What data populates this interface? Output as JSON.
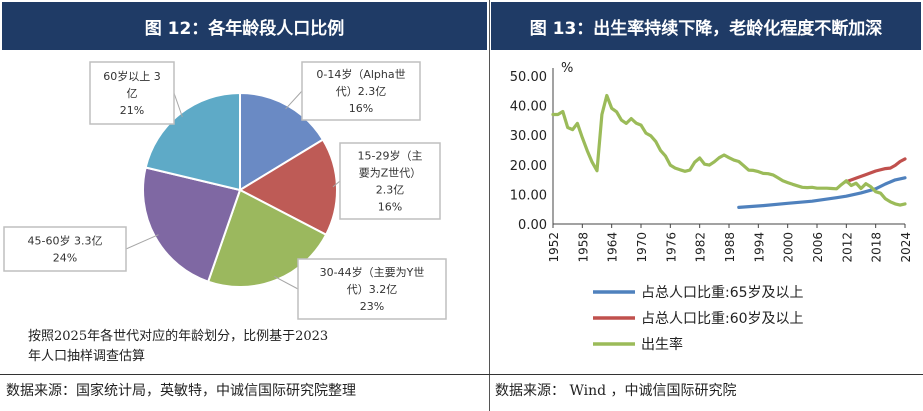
{
  "left": {
    "title": "图 12：各年龄段人口比例",
    "note_lines": [
      "按照2025年各世代对应的年龄划分，比例基于2023",
      "年人口抽样调查估算"
    ],
    "source": "数据来源：国家统计局，英敏特，中诚信国际研究院整理"
  },
  "right": {
    "title": "图 13：出生率持续下降，老龄化程度不断加深",
    "source": "数据来源： Wind ，中诚信国际研究院"
  },
  "chart_data": [
    {
      "type": "pie",
      "slices": [
        {
          "name": "0-14岁（Alpha世代）",
          "value": 2.3,
          "unit": "亿",
          "percent": "16%",
          "color": "#6a8ac4",
          "label_lines": [
            "0-14岁（Alpha世",
            "代）2.3亿",
            "16%"
          ]
        },
        {
          "name": "15-29岁（主要为Z世代）",
          "value": 2.3,
          "unit": "亿",
          "percent": "16%",
          "color": "#be5b56",
          "label_lines": [
            "15-29岁（主",
            "要为Z世代）",
            "2.3亿",
            "16%"
          ]
        },
        {
          "name": "30-44岁（主要为Y世代）",
          "value": 3.2,
          "unit": "亿",
          "percent": "23%",
          "color": "#9bb85e",
          "label_lines": [
            "30-44岁（主要为Y世",
            "代）3.2亿",
            "23%"
          ]
        },
        {
          "name": "45-60岁",
          "value": 3.3,
          "unit": "亿",
          "percent": "24%",
          "color": "#7f68a3",
          "label_lines": [
            "45-60岁 3.3亿",
            "24%"
          ]
        },
        {
          "name": "60岁以上",
          "value": 3,
          "unit": "亿",
          "percent": "21%",
          "color": "#5eaac7",
          "label_lines": [
            "60岁以上 3",
            "亿",
            "21%"
          ]
        }
      ]
    },
    {
      "type": "line",
      "y_unit": "%",
      "ylim": [
        0,
        50
      ],
      "yticks": [
        "50.00",
        "40.00",
        "30.00",
        "20.00",
        "10.00",
        "0.00"
      ],
      "xlim": [
        1952,
        2024
      ],
      "xticks": [
        "1952",
        "1958",
        "1964",
        "1970",
        "1976",
        "1982",
        "1988",
        "1994",
        "2000",
        "2006",
        "2012",
        "2018",
        "2024"
      ],
      "series": [
        {
          "name": "占总人口比重:65岁及以上",
          "color": "#4f81bd",
          "x": [
            1990,
            1995,
            2000,
            2005,
            2010,
            2012,
            2015,
            2018,
            2020,
            2022,
            2024
          ],
          "y": [
            5.6,
            6.2,
            7.0,
            7.7,
            8.9,
            9.4,
            10.5,
            11.9,
            13.5,
            14.9,
            15.6
          ]
        },
        {
          "name": "占总人口比重:60岁及以上",
          "color": "#c0504d",
          "x": [
            2012,
            2014,
            2016,
            2018,
            2020,
            2021,
            2022,
            2023,
            2024
          ],
          "y": [
            14.3,
            15.5,
            16.7,
            17.9,
            18.7,
            18.9,
            19.8,
            21.1,
            22.0
          ]
        },
        {
          "name": "出生率",
          "color": "#9bbb59",
          "x": [
            1952,
            1953,
            1954,
            1955,
            1956,
            1957,
            1958,
            1959,
            1960,
            1961,
            1962,
            1963,
            1964,
            1965,
            1966,
            1967,
            1968,
            1969,
            1970,
            1971,
            1972,
            1973,
            1974,
            1975,
            1976,
            1977,
            1978,
            1979,
            1980,
            1981,
            1982,
            1983,
            1984,
            1985,
            1986,
            1987,
            1988,
            1989,
            1990,
            1991,
            1992,
            1993,
            1994,
            1995,
            1996,
            1997,
            1998,
            1999,
            2000,
            2001,
            2002,
            2003,
            2004,
            2005,
            2006,
            2007,
            2008,
            2009,
            2010,
            2011,
            2012,
            2013,
            2014,
            2015,
            2016,
            2017,
            2018,
            2019,
            2020,
            2021,
            2022,
            2023,
            2024
          ],
          "y": [
            37.0,
            37.0,
            38.0,
            32.6,
            31.9,
            34.0,
            29.2,
            24.8,
            20.9,
            18.0,
            37.0,
            43.4,
            39.1,
            37.9,
            35.1,
            34.0,
            35.6,
            34.1,
            33.4,
            30.7,
            29.8,
            27.9,
            24.8,
            23.0,
            19.9,
            18.9,
            18.3,
            17.8,
            18.2,
            20.9,
            22.3,
            20.2,
            19.9,
            21.0,
            22.4,
            23.3,
            22.4,
            21.6,
            21.1,
            19.7,
            18.2,
            18.1,
            17.7,
            17.1,
            17.0,
            16.6,
            15.6,
            14.6,
            14.0,
            13.4,
            12.9,
            12.4,
            12.3,
            12.4,
            12.1,
            12.1,
            12.1,
            12.0,
            11.9,
            13.3,
            14.6,
            13.0,
            13.8,
            12.0,
            13.6,
            12.6,
            10.9,
            10.4,
            8.5,
            7.5,
            6.8,
            6.4,
            6.8
          ]
        }
      ],
      "legend_position": "bottom"
    }
  ]
}
